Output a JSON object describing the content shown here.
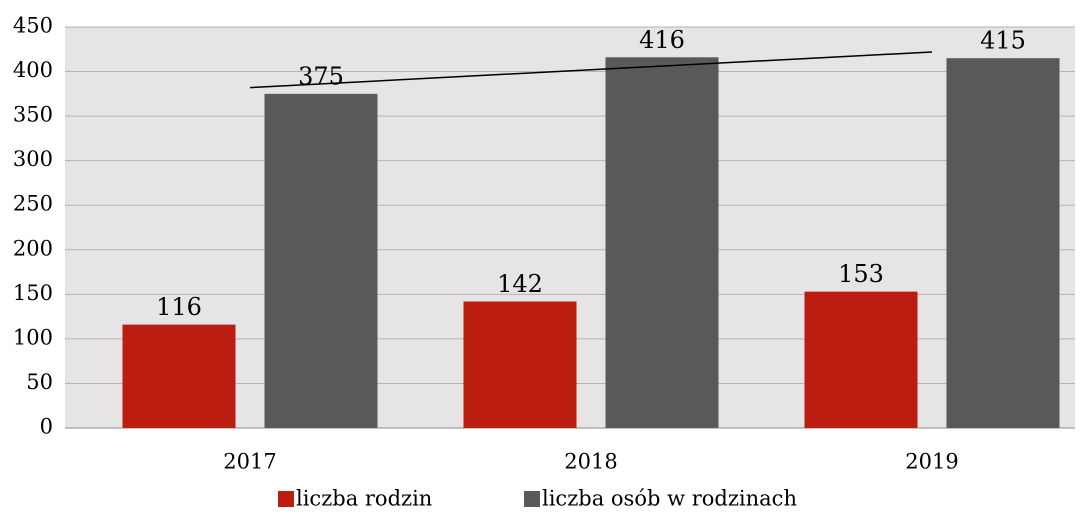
{
  "chart_data": {
    "type": "bar",
    "categories": [
      "2017",
      "2018",
      "2019"
    ],
    "series": [
      {
        "name": "liczba rodzin",
        "color": "#bb1d10",
        "values": [
          116,
          142,
          153
        ]
      },
      {
        "name": "liczba osób w rodzinach",
        "color": "#595959",
        "values": [
          375,
          416,
          415
        ],
        "trendline": "linear"
      }
    ],
    "ylim": [
      0,
      450
    ],
    "yticks": [
      0,
      50,
      100,
      150,
      200,
      250,
      300,
      350,
      400,
      450
    ],
    "grid": true,
    "legend": "bottom"
  }
}
